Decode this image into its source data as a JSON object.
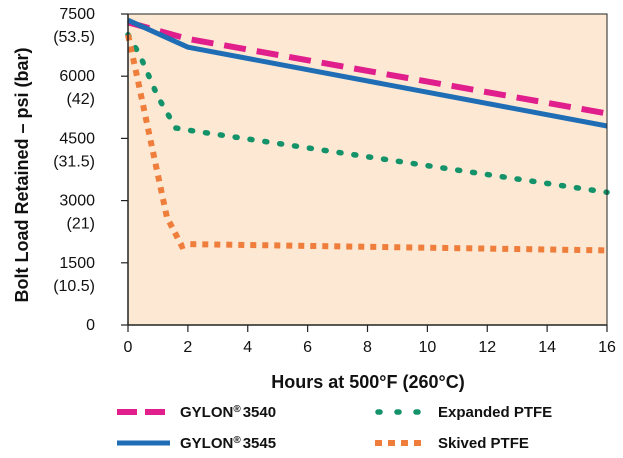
{
  "chart_data": {
    "type": "line",
    "title": "",
    "xlabel": "Hours at 500°F (260°C)",
    "ylabel": "Bolt Load Retained – psi (bar)",
    "xlim": [
      0,
      16
    ],
    "ylim": [
      0,
      7500
    ],
    "x_ticks": [
      "0",
      "2",
      "4",
      "6",
      "8",
      "10",
      "12",
      "14",
      "16"
    ],
    "y_ticks": [
      {
        "value": 0,
        "psi": "0",
        "bar": ""
      },
      {
        "value": 1500,
        "psi": "1500",
        "bar": "(10.5)"
      },
      {
        "value": 3000,
        "psi": "3000",
        "bar": "(21)"
      },
      {
        "value": 4500,
        "psi": "4500",
        "bar": "(31.5)"
      },
      {
        "value": 6000,
        "psi": "6000",
        "bar": "(42)"
      },
      {
        "value": 7500,
        "psi": "7500",
        "bar": "(53.5)"
      }
    ],
    "legend_position": "bottom",
    "grid": false,
    "colors": {
      "plot_background": "#fde9d3",
      "gylon_3540": "#e01f8c",
      "gylon_3545": "#1f6db5",
      "expanded_ptfe": "#14936b",
      "skived_ptfe": "#ef7d3b"
    },
    "series": [
      {
        "key": "gylon_3540",
        "name": "GYLON® 3540",
        "legend_main": "GYLON",
        "legend_mark": "®",
        "legend_num": "3540",
        "style": "dashed",
        "x": [
          0,
          2,
          16
        ],
        "y": [
          7300,
          6900,
          5100
        ]
      },
      {
        "key": "gylon_3545",
        "name": "GYLON® 3545",
        "legend_main": "GYLON",
        "legend_mark": "®",
        "legend_num": "3545",
        "style": "solid",
        "x": [
          0,
          2,
          16
        ],
        "y": [
          7350,
          6700,
          4800
        ]
      },
      {
        "key": "expanded_ptfe",
        "name": "Expanded PTFE",
        "legend_main": "Expanded PTFE",
        "legend_mark": "",
        "legend_num": "",
        "style": "dotted",
        "x": [
          0,
          0.4,
          1,
          1.6,
          2,
          16
        ],
        "y": [
          7000,
          6500,
          5500,
          4750,
          4700,
          3200
        ]
      },
      {
        "key": "skived_ptfe",
        "name": "Skived PTFE",
        "legend_main": "Skived PTFE",
        "legend_mark": "",
        "legend_num": "",
        "style": "square-dotted",
        "x": [
          0,
          0.3,
          0.8,
          1.3,
          1.8,
          2,
          16
        ],
        "y": [
          7000,
          6000,
          4300,
          2600,
          1900,
          1950,
          1800
        ]
      }
    ]
  }
}
